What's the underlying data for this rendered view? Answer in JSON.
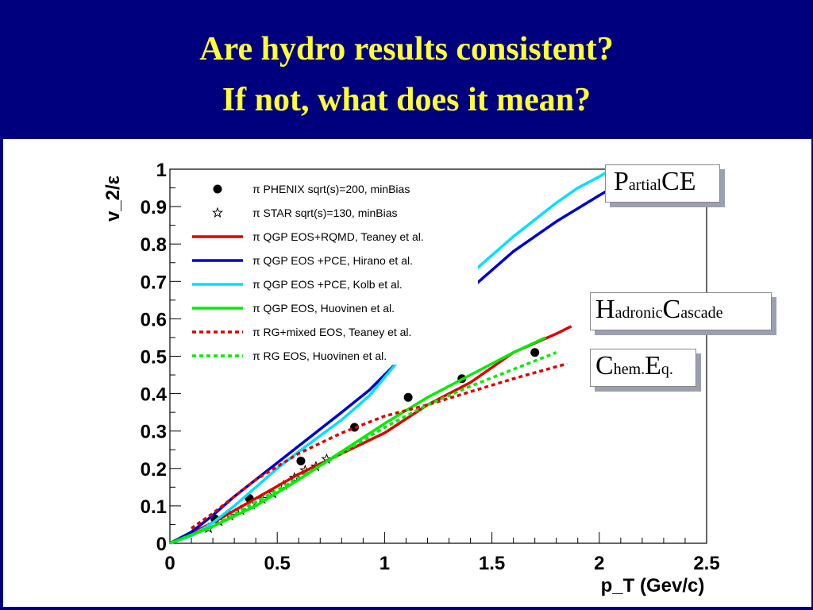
{
  "slide": {
    "title_line1": "Are hydro results consistent?",
    "title_line2": "If not, what does it mean?"
  },
  "callouts": [
    {
      "parts": [
        {
          "t": "P",
          "s": "big"
        },
        {
          "t": "artial",
          "s": "small"
        },
        {
          "t": "CE",
          "s": "big"
        }
      ]
    },
    {
      "parts": [
        {
          "t": "H",
          "s": "big"
        },
        {
          "t": "adronic",
          "s": "small"
        },
        {
          "t": "C",
          "s": "big"
        },
        {
          "t": "ascade",
          "s": "small"
        }
      ]
    },
    {
      "parts": [
        {
          "t": "C",
          "s": "big"
        },
        {
          "t": "hem.",
          "s": "small"
        },
        {
          "t": "E",
          "s": "big"
        },
        {
          "t": "q.",
          "s": "small"
        }
      ]
    }
  ],
  "chart_data": {
    "type": "line",
    "xlabel": "p_T (Gev/c)",
    "ylabel": "v_2/ε",
    "xlim": [
      0,
      2.5
    ],
    "ylim": [
      0,
      1
    ],
    "xticks": [
      "0",
      "0.5",
      "1",
      "1.5",
      "2",
      "2.5"
    ],
    "yticks": [
      "0",
      "0.1",
      "0.2",
      "0.3",
      "0.4",
      "0.5",
      "0.6",
      "0.7",
      "0.8",
      "0.9",
      "1"
    ],
    "series": [
      {
        "name": "π PHENIX sqrt(s)=200, minBias",
        "style": "dot",
        "color": "#000000",
        "x": [
          0.21,
          0.37,
          0.61,
          0.86,
          1.11,
          1.36,
          1.7
        ],
        "y": [
          0.065,
          0.12,
          0.22,
          0.31,
          0.39,
          0.44,
          0.51
        ]
      },
      {
        "name": "π STAR sqrt(s)=130, minBias",
        "style": "star",
        "color": "#000000",
        "x": [
          0.18,
          0.23,
          0.28,
          0.33,
          0.38,
          0.43,
          0.48,
          0.53,
          0.58,
          0.63,
          0.68,
          0.73
        ],
        "y": [
          0.04,
          0.058,
          0.073,
          0.088,
          0.103,
          0.118,
          0.133,
          0.155,
          0.175,
          0.195,
          0.205,
          0.225
        ]
      },
      {
        "name": "π  QGP EOS+RQMD, Teaney et al.",
        "style": "solid",
        "color": "#e00000",
        "x": [
          0,
          0.2,
          0.4,
          0.6,
          0.8,
          1.0,
          1.2,
          1.4,
          1.6,
          1.8,
          1.87
        ],
        "y": [
          0,
          0.055,
          0.12,
          0.185,
          0.24,
          0.295,
          0.37,
          0.43,
          0.51,
          0.56,
          0.58
        ]
      },
      {
        "name": "π QGP EOS +PCE, Hirano et al.",
        "style": "solid",
        "color": "#0000d0",
        "x": [
          0,
          0.1,
          0.2,
          0.3,
          0.4,
          0.5,
          0.6,
          0.8,
          0.93,
          1.4,
          1.6,
          1.8,
          2.0,
          2.03
        ],
        "y": [
          0,
          0.03,
          0.075,
          0.125,
          0.17,
          0.215,
          0.26,
          0.35,
          0.41,
          0.68,
          0.78,
          0.86,
          0.93,
          0.94
        ]
      },
      {
        "name": "π QGP EOS +PCE, Kolb et al.",
        "style": "solid",
        "color": "#00e0ff",
        "x": [
          0,
          0.1,
          0.2,
          0.3,
          0.4,
          0.5,
          0.6,
          0.8,
          0.93,
          1.4,
          1.6,
          1.8,
          1.9,
          2.0,
          2.03
        ],
        "y": [
          0,
          0.02,
          0.055,
          0.1,
          0.15,
          0.2,
          0.245,
          0.33,
          0.395,
          0.72,
          0.82,
          0.91,
          0.95,
          0.98,
          0.99
        ]
      },
      {
        "name": "π QGP EOS, Huovinen et al.",
        "style": "solid",
        "color": "#00ee00",
        "x": [
          0,
          0.2,
          0.4,
          0.6,
          0.8,
          1.0,
          1.2,
          1.4,
          1.6,
          1.75
        ],
        "y": [
          0,
          0.045,
          0.1,
          0.17,
          0.245,
          0.32,
          0.39,
          0.45,
          0.51,
          0.55
        ]
      },
      {
        "name": "π RG+mixed EOS, Teaney et al.",
        "style": "dotted",
        "color": "#e00000",
        "x": [
          0.1,
          0.2,
          0.4,
          0.6,
          0.8,
          1.0,
          1.2,
          1.4,
          1.6,
          1.85
        ],
        "y": [
          0.04,
          0.08,
          0.17,
          0.24,
          0.295,
          0.34,
          0.37,
          0.405,
          0.44,
          0.48
        ]
      },
      {
        "name": "π RG EOS, Huovinen et al.",
        "style": "dotted",
        "color": "#00ee00",
        "x": [
          0,
          0.2,
          0.4,
          0.6,
          0.8,
          1.0,
          1.2,
          1.4,
          1.6,
          1.8
        ],
        "y": [
          0,
          0.045,
          0.11,
          0.175,
          0.24,
          0.31,
          0.37,
          0.42,
          0.465,
          0.51
        ]
      }
    ],
    "legend_position": "top-left"
  }
}
